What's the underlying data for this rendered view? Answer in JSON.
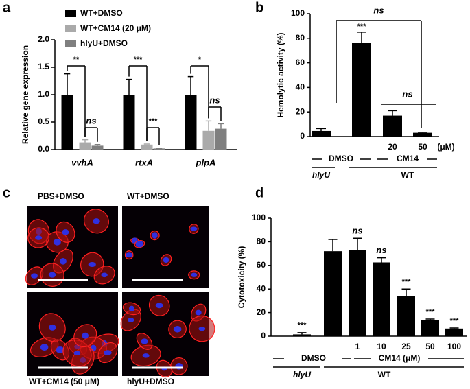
{
  "panel_labels": [
    "a",
    "b",
    "c",
    "d"
  ],
  "chart_data": [
    {
      "type": "bar",
      "y_label": "Relative gene expression",
      "categories": [
        "vvhA",
        "rtxA",
        "plpA"
      ],
      "series": [
        {
          "name": "WT+DMSO",
          "color": "#000000",
          "values": [
            1.0,
            1.0,
            1.0
          ],
          "errors": [
            0.38,
            0.28,
            0.33
          ]
        },
        {
          "name": "WT+CM14 (20 μM)",
          "color": "#aaaaaa",
          "values": [
            0.13,
            0.09,
            0.34
          ],
          "errors": [
            0.05,
            0.01,
            0.18
          ]
        },
        {
          "name": "hlyU+DMSO",
          "color": "#7f7f7f",
          "values": [
            0.07,
            0.02,
            0.38
          ],
          "errors": [
            0.02,
            0.005,
            0.09
          ]
        }
      ],
      "ylim": [
        0,
        2
      ],
      "yticks": [
        {
          "value": 0,
          "label": "0.0"
        },
        {
          "value": 0.5,
          "label": "0.5"
        },
        {
          "value": 1,
          "label": "1.0"
        },
        {
          "value": 1.5,
          "label": "1.5"
        },
        {
          "value": 2,
          "label": "2.0"
        }
      ],
      "annotations": [
        "**",
        "ns",
        "***",
        "***",
        "*",
        "ns"
      ]
    },
    {
      "type": "bar",
      "y_label": "Hemolytic activity (%)",
      "categories": [
        null,
        null,
        "20",
        "50"
      ],
      "unit_label": "(μM)",
      "group_labels": [
        "DMSO",
        "CM14",
        "hlyU",
        "WT"
      ],
      "values": [
        4.5,
        76,
        17,
        3
      ],
      "errors": [
        2,
        9,
        4,
        0.5
      ],
      "color": "#000000",
      "ylim": [
        0,
        100
      ],
      "yticks": [
        0,
        20,
        40,
        60,
        80,
        100
      ],
      "annotations": [
        "***",
        "ns",
        "ns"
      ]
    },
    {
      "type": "bar",
      "y_label": "Cytotoxicity (%)",
      "categories": [
        null,
        null,
        "1",
        "10",
        "25",
        "50",
        "100"
      ],
      "group_labels": [
        "DMSO",
        "CM14 (μM)",
        "hlyU",
        "WT"
      ],
      "values": [
        1.5,
        72,
        73,
        62.5,
        34,
        13.5,
        6.5
      ],
      "errors": [
        1.5,
        10,
        10,
        4,
        6,
        1,
        0.5
      ],
      "color": "#000000",
      "ylim": [
        0,
        100
      ],
      "yticks": [
        0,
        20,
        40,
        60,
        80,
        100
      ],
      "annotations": [
        "***",
        "ns",
        "ns",
        "***",
        "***",
        "***"
      ]
    }
  ],
  "image_panel": {
    "labels": [
      "PBS+DMSO",
      "WT+DMSO",
      "WT+CM14 (50 μM)",
      "hlyU+DMSO"
    ]
  }
}
